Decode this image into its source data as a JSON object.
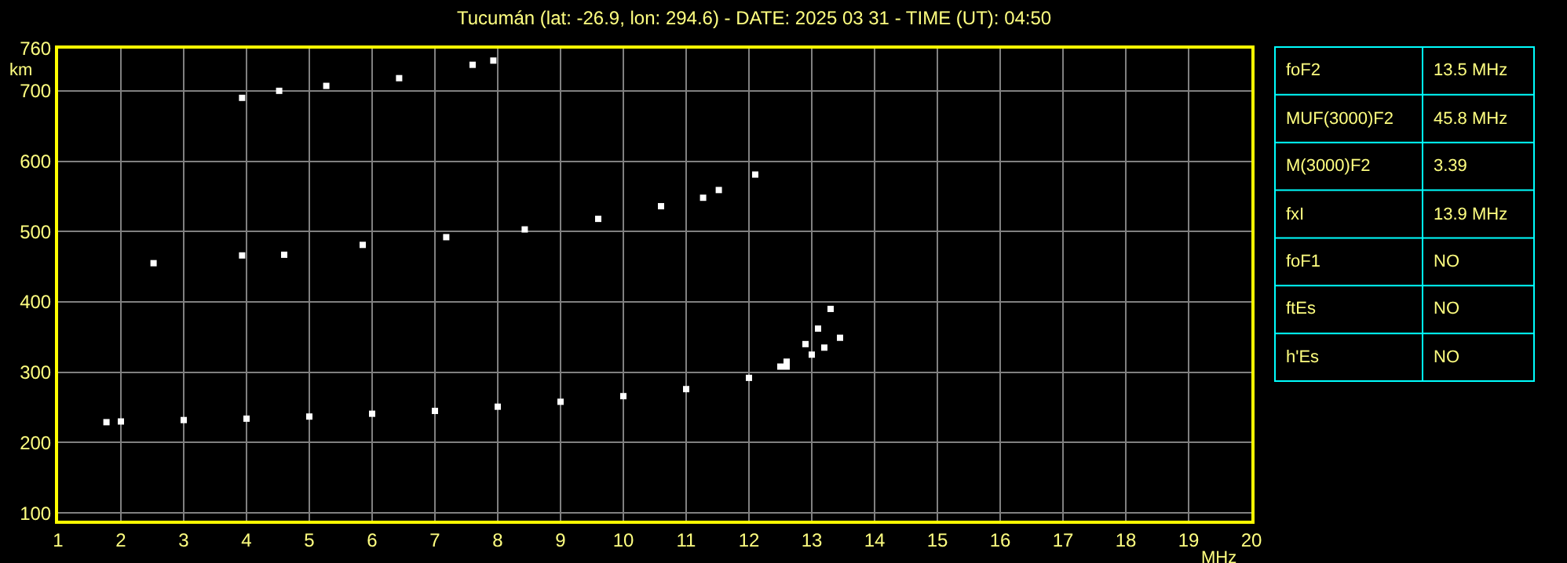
{
  "chart_data": [
    {
      "type": "scatter",
      "title": "Tucumán (lat: -26.9, lon: 294.6) - DATE: 2025 03 31 - TIME (UT): 04:50",
      "xlabel": "MHz",
      "ylabel": "km",
      "xlim": [
        1,
        20
      ],
      "xticks": [
        1,
        2,
        3,
        4,
        5,
        6,
        7,
        8,
        9,
        10,
        11,
        12,
        13,
        14,
        15,
        16,
        17,
        18,
        19,
        20
      ],
      "ylim": [
        89,
        760
      ],
      "yticks": [
        100,
        200,
        300,
        400,
        500,
        600,
        700,
        760
      ],
      "grid": true,
      "marker": "square",
      "series": [
        {
          "color": "#ffffff",
          "x": [
            1.77,
            2,
            3,
            4,
            5,
            6,
            7,
            8,
            9,
            10,
            11,
            12,
            12.5,
            12.6,
            12.9,
            13.1,
            13.3
          ],
          "values": [
            229,
            230,
            232,
            234,
            237,
            241,
            245,
            251,
            258,
            266,
            276,
            292,
            308,
            315,
            340,
            362,
            390
          ]
        },
        {
          "color": "#ffffff",
          "x": [
            12.6,
            13.0,
            13.2,
            13.45
          ],
          "values": [
            308,
            325,
            335,
            349
          ]
        },
        {
          "color": "#ffffff",
          "x": [
            2.52,
            3.93,
            4.6,
            5.85,
            7.18,
            8.43,
            9.6,
            10.6,
            11.27,
            11.52,
            12.1
          ],
          "values": [
            455,
            466,
            467,
            481,
            492,
            503,
            518,
            536,
            548,
            559,
            581
          ]
        },
        {
          "color": "#ffffff",
          "x": [
            3.93,
            4.52,
            5.27,
            6.43,
            7.6,
            7.93
          ],
          "values": [
            690,
            700,
            707,
            718,
            737,
            743
          ]
        }
      ]
    },
    {
      "type": "other",
      "y_categories": [
        "foF2",
        "MUF(3000)F2",
        "M(3000)F2",
        "fxI",
        "foF1",
        "ftEs",
        "h'Es"
      ],
      "y2_categories": [
        "13.5 MHz",
        "45.8 MHz",
        "3.39",
        "13.9 MHz",
        "NO",
        "NO",
        "NO"
      ]
    }
  ]
}
